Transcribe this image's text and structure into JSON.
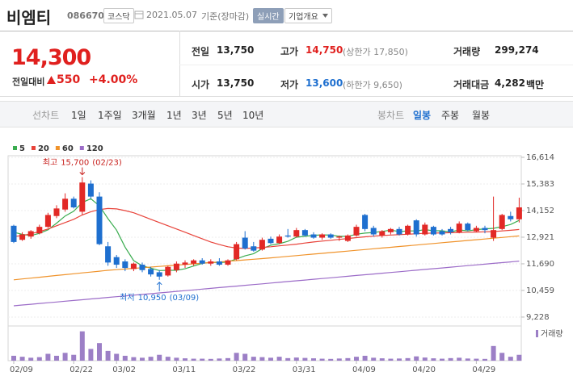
{
  "header": {
    "name": "비엠티",
    "code": "086670",
    "market": "코스닥",
    "date": "2021.05.07",
    "basis": "기준(장마감)",
    "realtime": "실시간",
    "company_info": "기업개요"
  },
  "quote": {
    "price": "14,300",
    "change_label": "전일대비",
    "change": "550",
    "change_rate": "+4.00%",
    "stats": [
      {
        "label": "전일",
        "value": "13,750"
      },
      {
        "label": "고가",
        "value": "14,750",
        "note": "(상한가 17,850)"
      },
      {
        "label": "거래량",
        "value": "299,274"
      },
      {
        "label": "시가",
        "value": "13,750"
      },
      {
        "label": "저가",
        "value": "13,600",
        "note": "(하한가 9,650)"
      },
      {
        "label": "거래대금",
        "value": "4,282",
        "unit": "백만"
      }
    ]
  },
  "tabs": {
    "line_label": "선차트",
    "line_periods": [
      "1일",
      "1주일",
      "3개월",
      "1년",
      "3년",
      "5년",
      "10년"
    ],
    "candle_label": "봉차트",
    "candle_periods": [
      "일봉",
      "주봉",
      "월봉"
    ],
    "selected_candle_period": 0
  },
  "chart_data": {
    "type": "candlestick",
    "categories": [
      "02/09",
      null,
      null,
      null,
      null,
      null,
      null,
      "02/22",
      null,
      null,
      null,
      null,
      "03/02",
      null,
      null,
      null,
      null,
      null,
      null,
      "03/11",
      null,
      null,
      null,
      null,
      null,
      null,
      "03/22",
      null,
      null,
      null,
      null,
      null,
      null,
      "03/31",
      null,
      null,
      null,
      null,
      null,
      null,
      "04/09",
      null,
      null,
      null,
      null,
      null,
      null,
      "04/20",
      null,
      null,
      null,
      null,
      null,
      null,
      "04/29",
      null,
      null,
      null,
      null,
      null
    ],
    "candles": {
      "open": [
        13450,
        12800,
        12950,
        13100,
        13400,
        13900,
        14200,
        14700,
        14100,
        15400,
        14800,
        12500,
        12000,
        11800,
        11450,
        11650,
        11450,
        11300,
        11150,
        11400,
        11650,
        11700,
        11850,
        11700,
        11800,
        11650,
        11900,
        12900,
        12500,
        12350,
        12850,
        12650,
        13000,
        12950,
        13250,
        13050,
        12900,
        13050,
        12900,
        12750,
        13000,
        13950,
        13350,
        13000,
        13150,
        13300,
        13050,
        13700,
        13050,
        13400,
        13200,
        13300,
        13150,
        13550,
        13200,
        13350,
        12900,
        13300,
        13900,
        13750
      ],
      "high": [
        13500,
        13150,
        13250,
        13500,
        14050,
        14400,
        14950,
        14800,
        15700,
        15550,
        15000,
        12700,
        12100,
        11900,
        11750,
        11750,
        11550,
        11400,
        11600,
        11800,
        11850,
        11900,
        11950,
        11900,
        11950,
        11900,
        12700,
        13200,
        12700,
        12900,
        12950,
        13050,
        13300,
        13350,
        13300,
        13150,
        13100,
        13100,
        13000,
        13050,
        13500,
        14000,
        13450,
        13250,
        13350,
        13400,
        13500,
        13750,
        13600,
        13450,
        13300,
        13400,
        13650,
        13600,
        13450,
        13450,
        14800,
        14000,
        14100,
        14750
      ],
      "low": [
        12650,
        12750,
        12850,
        13050,
        13350,
        13800,
        14100,
        14250,
        13950,
        14700,
        12550,
        11600,
        11500,
        11350,
        11350,
        11300,
        11100,
        10950,
        11100,
        11300,
        11500,
        11600,
        11650,
        11600,
        11600,
        11600,
        11850,
        12350,
        12250,
        12300,
        12600,
        12600,
        12900,
        12900,
        12950,
        12850,
        12800,
        12850,
        12750,
        12700,
        12950,
        13200,
        12950,
        12900,
        13050,
        13000,
        13000,
        12950,
        13000,
        13000,
        13000,
        13050,
        13100,
        13200,
        13150,
        13100,
        12750,
        13250,
        13650,
        13600
      ],
      "close": [
        12700,
        13050,
        13200,
        13400,
        13950,
        14250,
        14700,
        14300,
        15450,
        14800,
        12600,
        11750,
        11650,
        11500,
        11700,
        11400,
        11200,
        11100,
        11550,
        11700,
        11750,
        11850,
        11700,
        11800,
        11650,
        11850,
        12600,
        12400,
        12300,
        12800,
        12650,
        12950,
        12950,
        13250,
        13000,
        12900,
        13050,
        12900,
        12950,
        13000,
        13400,
        13300,
        13050,
        13200,
        13300,
        13050,
        13450,
        13050,
        13500,
        13050,
        13050,
        13150,
        13550,
        13250,
        13350,
        13250,
        13250,
        13950,
        13750,
        14300
      ]
    },
    "up_color": "#e22926",
    "down_color": "#1e6fcf",
    "lines": [
      {
        "name": "5",
        "color": "#3aac4f",
        "values": [
          13150,
          13050,
          13000,
          13100,
          13260,
          13570,
          13900,
          14120,
          14530,
          14700,
          14370,
          13780,
          13250,
          12460,
          11840,
          11600,
          11490,
          11380,
          11390,
          11390,
          11460,
          11590,
          11710,
          11760,
          11750,
          11770,
          11920,
          12060,
          12160,
          12390,
          12550,
          12620,
          12730,
          12920,
          12960,
          13010,
          13030,
          13020,
          12960,
          12960,
          13060,
          13110,
          13140,
          13190,
          13250,
          13180,
          13210,
          13210,
          13270,
          13220,
          13220,
          13160,
          13260,
          13210,
          13270,
          13310,
          13330,
          13410,
          13510,
          13700
        ]
      },
      {
        "name": "20",
        "color": "#e8433a",
        "values": [
          12950,
          13000,
          13080,
          13180,
          13300,
          13450,
          13600,
          13750,
          13950,
          14100,
          14200,
          14250,
          14230,
          14150,
          14050,
          13900,
          13750,
          13600,
          13450,
          13300,
          13150,
          13000,
          12850,
          12700,
          12580,
          12480,
          12420,
          12400,
          12420,
          12450,
          12480,
          12520,
          12560,
          12600,
          12650,
          12700,
          12740,
          12780,
          12820,
          12860,
          12900,
          12940,
          12970,
          13000,
          13020,
          13040,
          13060,
          13080,
          13100,
          13110,
          13120,
          13130,
          13140,
          13150,
          13160,
          13170,
          13180,
          13210,
          13240,
          13280
        ]
      },
      {
        "name": "60",
        "color": "#f0932b",
        "values": [
          10950,
          10990,
          11030,
          11070,
          11110,
          11150,
          11190,
          11230,
          11270,
          11310,
          11350,
          11390,
          11420,
          11450,
          11480,
          11510,
          11540,
          11570,
          11600,
          11630,
          11660,
          11690,
          11720,
          11750,
          11780,
          11810,
          11840,
          11870,
          11900,
          11930,
          11965,
          12000,
          12035,
          12070,
          12105,
          12140,
          12175,
          12210,
          12245,
          12280,
          12315,
          12350,
          12385,
          12420,
          12455,
          12490,
          12525,
          12560,
          12595,
          12630,
          12665,
          12700,
          12735,
          12770,
          12805,
          12840,
          12875,
          12910,
          12945,
          12980
        ]
      },
      {
        "name": "120",
        "color": "#9c6cc8",
        "values": [
          9750,
          9785,
          9820,
          9855,
          9890,
          9925,
          9960,
          9995,
          10030,
          10065,
          10100,
          10135,
          10170,
          10205,
          10240,
          10275,
          10310,
          10345,
          10380,
          10415,
          10450,
          10485,
          10520,
          10555,
          10590,
          10625,
          10660,
          10695,
          10730,
          10765,
          10800,
          10835,
          10870,
          10905,
          10940,
          10975,
          11010,
          11045,
          11080,
          11115,
          11150,
          11185,
          11220,
          11255,
          11290,
          11325,
          11360,
          11395,
          11430,
          11465,
          11500,
          11535,
          11570,
          11605,
          11640,
          11675,
          11710,
          11745,
          11780,
          11815
        ]
      }
    ],
    "volume": {
      "name": "거래량",
      "color": "#9c7fc6",
      "ylim": [
        0,
        1650000
      ],
      "values": [
        250000,
        200000,
        150000,
        180000,
        350000,
        250000,
        400000,
        300000,
        1500000,
        600000,
        900000,
        500000,
        350000,
        250000,
        180000,
        150000,
        200000,
        300000,
        200000,
        150000,
        120000,
        100000,
        100000,
        90000,
        110000,
        130000,
        400000,
        350000,
        200000,
        180000,
        150000,
        200000,
        130000,
        160000,
        140000,
        120000,
        100000,
        90000,
        110000,
        130000,
        200000,
        250000,
        150000,
        120000,
        100000,
        110000,
        130000,
        220000,
        160000,
        120000,
        100000,
        130000,
        150000,
        110000,
        100000,
        90000,
        750000,
        400000,
        200000,
        299274
      ]
    },
    "ylim": [
      8853,
      16689
    ],
    "yticks": [
      {
        "value": 9228,
        "label": "9,228"
      },
      {
        "value": 10459,
        "label": "10,459"
      },
      {
        "value": 11690,
        "label": "11,690"
      },
      {
        "value": 12921,
        "label": "12,921"
      },
      {
        "value": 14152,
        "label": "14,152"
      },
      {
        "value": 15383,
        "label": "15,383"
      },
      {
        "value": 16614,
        "label": "16,614"
      }
    ],
    "grid": true,
    "high_note": {
      "label": "최고",
      "value": {
        "value": 15700,
        "label": "15,700"
      },
      "date": "(02/23)",
      "color": "#c8201d"
    },
    "low_note": {
      "label": "최저",
      "value": {
        "value": 10950,
        "label": "10,950"
      },
      "date": "(03/09)",
      "color": "#1e6fcf"
    }
  }
}
